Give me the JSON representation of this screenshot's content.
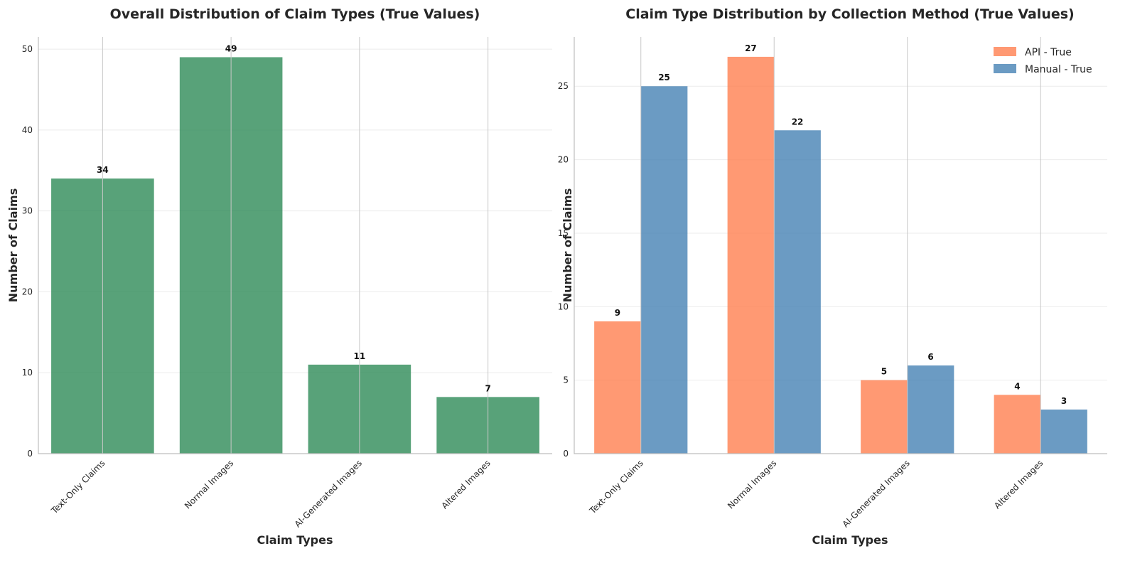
{
  "chart_data": [
    {
      "type": "bar",
      "title": "Overall Distribution of Claim Types (True Values)",
      "xlabel": "Claim Types",
      "ylabel": "Number of Claims",
      "categories": [
        "Text-Only Claims",
        "Normal Images",
        "AI-Generated Images",
        "Altered Images"
      ],
      "values": [
        34,
        49,
        11,
        7
      ],
      "ylim": [
        0,
        51.5
      ],
      "yticks": [
        0,
        10,
        20,
        30,
        40,
        50
      ],
      "color": "#2e8b57",
      "grid": true
    },
    {
      "type": "bar",
      "title": "Claim Type Distribution by Collection Method (True Values)",
      "xlabel": "Claim Types",
      "ylabel": "Number of Claims",
      "categories": [
        "Text-Only Claims",
        "Normal Images",
        "AI-Generated Images",
        "Altered Images"
      ],
      "series": [
        {
          "name": "API - True",
          "values": [
            9,
            27,
            5,
            4
          ],
          "color": "#ff7f50"
        },
        {
          "name": "Manual - True",
          "values": [
            25,
            22,
            6,
            3
          ],
          "color": "#4682b4"
        }
      ],
      "ylim": [
        0,
        28.35
      ],
      "yticks": [
        0,
        5,
        10,
        15,
        20,
        25
      ],
      "legend": "top-right",
      "grid": true
    }
  ]
}
